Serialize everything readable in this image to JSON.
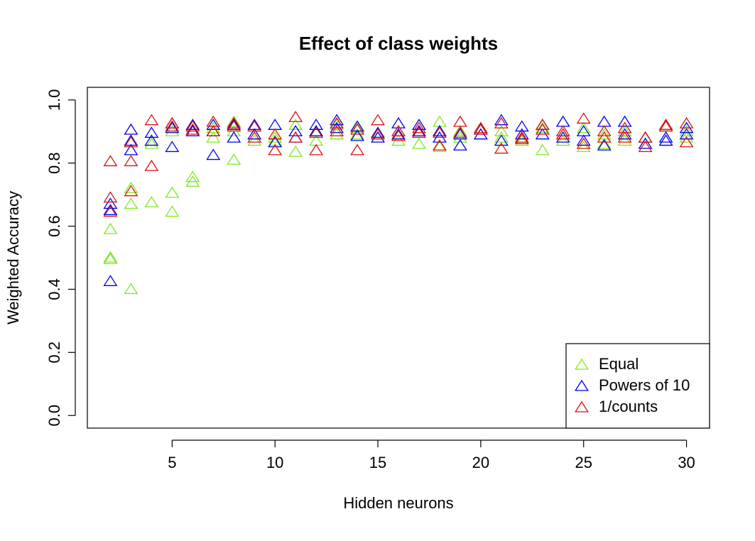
{
  "chart_data": {
    "type": "scatter",
    "title": "Effect of class weights",
    "x_label": "Hidden neurons",
    "y_label": "Weighted Accuracy",
    "xlim": [
      0.88,
      31.12
    ],
    "ylim": [
      -0.04,
      1.04
    ],
    "xticks": [
      5,
      10,
      15,
      20,
      25,
      30
    ],
    "yticks": [
      {
        "value": 0,
        "label": "0.0"
      },
      {
        "value": 0.2,
        "label": "0.2"
      },
      {
        "value": 0.4,
        "label": "0.4"
      },
      {
        "value": 0.6,
        "label": "0.6"
      },
      {
        "value": 0.8,
        "label": "0.8"
      },
      {
        "value": 1,
        "label": "1.0"
      }
    ],
    "legend_position": "bottomright",
    "series": [
      {
        "name": "Equal",
        "color": "#7fea20",
        "x": [
          2,
          2,
          2,
          3,
          3,
          3,
          4,
          4,
          4,
          5,
          5,
          5,
          6,
          6,
          6,
          7,
          7,
          8,
          8,
          8,
          9,
          9,
          10,
          10,
          11,
          11,
          12,
          12,
          13,
          13,
          14,
          14,
          15,
          15,
          16,
          16,
          17,
          17,
          18,
          18,
          19,
          19,
          20,
          20,
          21,
          21,
          22,
          22,
          23,
          23,
          24,
          24,
          25,
          25,
          26,
          26,
          27,
          27,
          28,
          28,
          29,
          29,
          30,
          30
        ],
        "y": [
          0.59,
          0.5,
          0.495,
          0.72,
          0.67,
          0.4,
          0.86,
          0.675,
          0.87,
          0.9,
          0.705,
          0.645,
          0.755,
          0.74,
          0.9,
          0.88,
          0.91,
          0.81,
          0.93,
          0.9,
          0.87,
          0.89,
          0.88,
          0.87,
          0.835,
          0.92,
          0.87,
          0.9,
          0.89,
          0.92,
          0.89,
          0.91,
          0.88,
          0.89,
          0.87,
          0.9,
          0.86,
          0.92,
          0.85,
          0.93,
          0.88,
          0.9,
          0.89,
          0.91,
          0.88,
          0.9,
          0.87,
          0.88,
          0.84,
          0.91,
          0.87,
          0.89,
          0.85,
          0.91,
          0.86,
          0.89,
          0.87,
          0.9,
          0.86,
          0.88,
          0.87,
          0.92,
          0.88,
          0.9
        ]
      },
      {
        "name": "Powers of 10",
        "color": "#0000ee",
        "x": [
          2,
          2,
          2,
          3,
          3,
          3,
          4,
          4,
          5,
          5,
          5,
          6,
          6,
          7,
          7,
          7,
          8,
          8,
          9,
          9,
          10,
          10,
          11,
          11,
          12,
          12,
          13,
          13,
          14,
          14,
          15,
          15,
          16,
          16,
          17,
          17,
          18,
          18,
          19,
          19,
          20,
          20,
          21,
          21,
          22,
          22,
          23,
          23,
          24,
          24,
          25,
          25,
          26,
          26,
          27,
          27,
          28,
          28,
          29,
          29,
          30,
          30
        ],
        "y": [
          0.425,
          0.65,
          0.67,
          0.84,
          0.87,
          0.905,
          0.87,
          0.895,
          0.85,
          0.91,
          0.925,
          0.9,
          0.92,
          0.825,
          0.9,
          0.92,
          0.88,
          0.92,
          0.89,
          0.92,
          0.865,
          0.92,
          0.88,
          0.9,
          0.9,
          0.92,
          0.91,
          0.935,
          0.885,
          0.915,
          0.88,
          0.895,
          0.89,
          0.925,
          0.9,
          0.92,
          0.88,
          0.9,
          0.855,
          0.89,
          0.89,
          0.905,
          0.87,
          0.935,
          0.89,
          0.915,
          0.89,
          0.92,
          0.88,
          0.93,
          0.87,
          0.9,
          0.855,
          0.93,
          0.89,
          0.93,
          0.86,
          0.88,
          0.88,
          0.87,
          0.89,
          0.91
        ]
      },
      {
        "name": "1/counts",
        "color": "#dd1111",
        "x": [
          2,
          2,
          2,
          3,
          3,
          3,
          4,
          4,
          5,
          5,
          6,
          6,
          7,
          7,
          8,
          8,
          9,
          9,
          10,
          10,
          11,
          11,
          12,
          12,
          13,
          13,
          14,
          14,
          15,
          15,
          16,
          16,
          17,
          17,
          18,
          18,
          19,
          19,
          20,
          20,
          21,
          21,
          22,
          22,
          23,
          23,
          24,
          24,
          25,
          25,
          26,
          26,
          27,
          27,
          28,
          28,
          29,
          29,
          30,
          30
        ],
        "y": [
          0.805,
          0.69,
          0.645,
          0.805,
          0.71,
          0.865,
          0.79,
          0.935,
          0.915,
          0.925,
          0.905,
          0.915,
          0.93,
          0.9,
          0.915,
          0.925,
          0.88,
          0.915,
          0.84,
          0.89,
          0.945,
          0.88,
          0.84,
          0.895,
          0.9,
          0.925,
          0.84,
          0.905,
          0.935,
          0.89,
          0.885,
          0.9,
          0.91,
          0.895,
          0.855,
          0.895,
          0.93,
          0.895,
          0.905,
          0.91,
          0.845,
          0.925,
          0.875,
          0.88,
          0.92,
          0.905,
          0.9,
          0.89,
          0.94,
          0.86,
          0.9,
          0.88,
          0.88,
          0.91,
          0.85,
          0.88,
          0.915,
          0.92,
          0.865,
          0.925
        ]
      }
    ]
  }
}
